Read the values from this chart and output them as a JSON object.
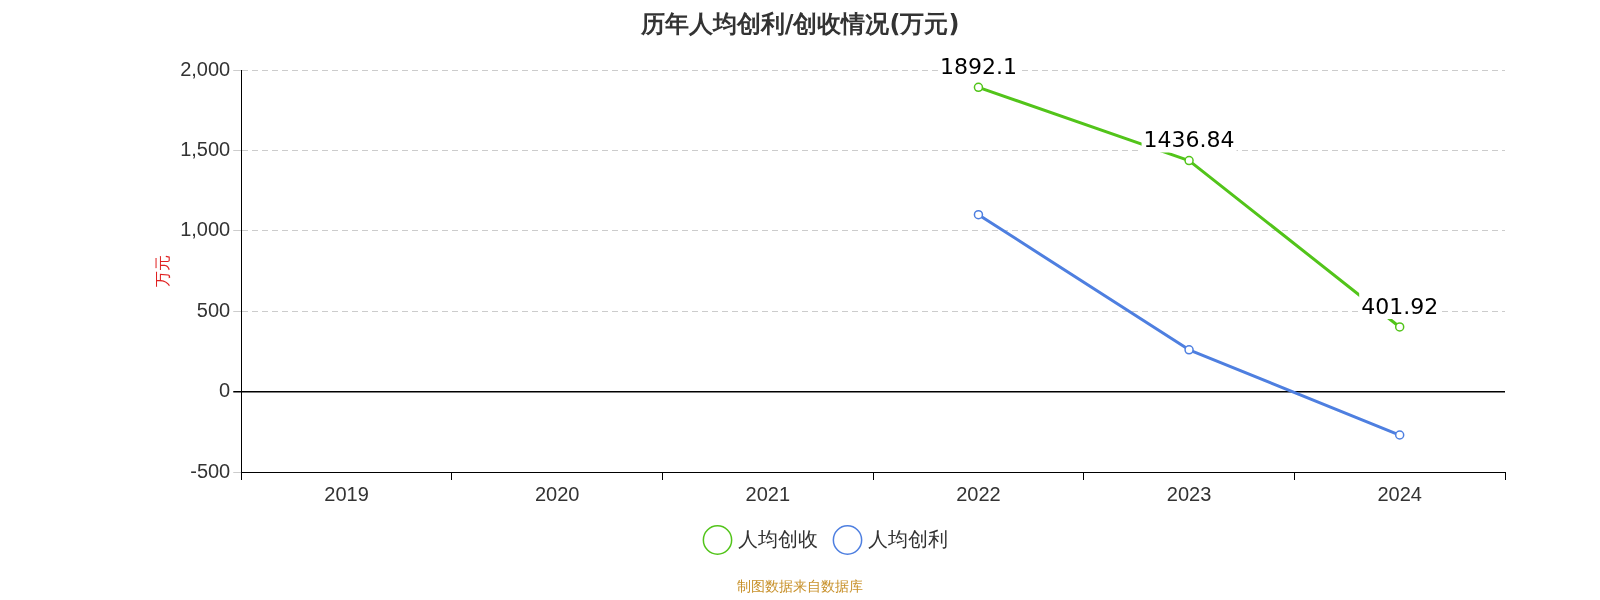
{
  "chart_data": {
    "type": "line",
    "title": "历年人均创利/创收情况(万元)",
    "ylabel": "万元",
    "categories": [
      "2019",
      "2020",
      "2021",
      "2022",
      "2023",
      "2024"
    ],
    "series": [
      {
        "name": "人均创收",
        "color": "#52c41a",
        "values": [
          null,
          null,
          null,
          1892.1,
          1436.84,
          401.92
        ],
        "value_labels": [
          null,
          null,
          null,
          "1892.1",
          "1436.84",
          "401.92"
        ]
      },
      {
        "name": "人均创利",
        "color": "#4e7fe0",
        "values": [
          null,
          null,
          null,
          1100,
          260,
          -270
        ]
      }
    ],
    "ylim": [
      -500,
      2000
    ],
    "yticks": [
      -500,
      0,
      500,
      {
        "value": 1000,
        "label": "1,000"
      },
      {
        "value": 1500,
        "label": "1,500"
      },
      {
        "value": 2000,
        "label": "2,000"
      }
    ],
    "grid": "y",
    "legend": "bottom",
    "marker": "circle",
    "annotations": [
      "制图数据来自数据库"
    ]
  }
}
